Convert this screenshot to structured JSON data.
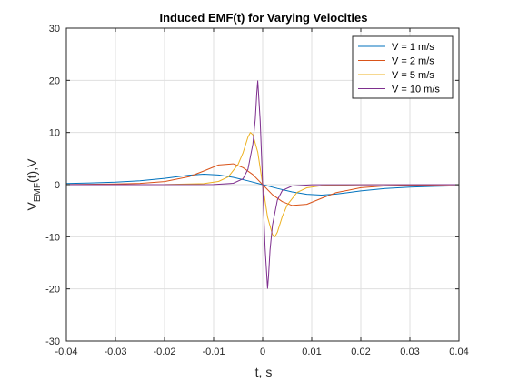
{
  "chart_data": {
    "type": "line",
    "title": "Induced EMF(t) for Varying Velocities",
    "xlabel": "t, s",
    "ylabel": {
      "main": "V",
      "sub": "EMF",
      "tail": "(t),V"
    },
    "xlim": [
      -0.04,
      0.04
    ],
    "ylim": [
      -30,
      30
    ],
    "xticks": [
      -0.04,
      -0.03,
      -0.02,
      -0.01,
      0,
      0.01,
      0.02,
      0.03,
      0.04
    ],
    "xtick_labels": [
      "-0.04",
      "-0.03",
      "-0.02",
      "-0.01",
      "0",
      "0.01",
      "0.02",
      "0.03",
      "0.04"
    ],
    "yticks": [
      -30,
      -20,
      -10,
      0,
      10,
      20,
      30
    ],
    "ytick_labels": [
      "-30",
      "-20",
      "-10",
      "0",
      "10",
      "20",
      "30"
    ],
    "grid": true,
    "legend_position": "top-right",
    "series": [
      {
        "name": "V = 1  m/s",
        "color": "#0072BD",
        "x": [
          -0.04,
          -0.035,
          -0.03,
          -0.025,
          -0.02,
          -0.015,
          -0.012,
          -0.009,
          -0.006,
          -0.003,
          0,
          0.003,
          0.006,
          0.009,
          0.012,
          0.015,
          0.02,
          0.025,
          0.03,
          0.035,
          0.04
        ],
        "y": [
          0.21,
          0.32,
          0.47,
          0.75,
          1.2,
          1.82,
          2.0,
          1.85,
          1.39,
          0.73,
          0,
          -0.73,
          -1.39,
          -1.85,
          -2.0,
          -1.82,
          -1.2,
          -0.75,
          -0.47,
          -0.32,
          -0.21
        ]
      },
      {
        "name": "V = 2  m/s",
        "color": "#D95319",
        "x": [
          -0.04,
          -0.03,
          -0.025,
          -0.02,
          -0.015,
          -0.012,
          -0.009,
          -0.006,
          -0.004,
          -0.002,
          0,
          0.002,
          0.004,
          0.006,
          0.009,
          0.012,
          0.015,
          0.02,
          0.025,
          0.03,
          0.04
        ],
        "y": [
          0.03,
          0.12,
          0.24,
          0.59,
          1.53,
          2.62,
          3.77,
          4.0,
          3.26,
          1.93,
          0,
          -1.93,
          -3.26,
          -4.0,
          -3.77,
          -2.62,
          -1.53,
          -0.59,
          -0.24,
          -0.12,
          -0.03
        ]
      },
      {
        "name": "V = 5  m/s",
        "color": "#EDB120",
        "x": [
          -0.04,
          -0.02,
          -0.012,
          -0.009,
          -0.007,
          -0.005,
          -0.004,
          -0.003,
          -0.0025,
          -0.002,
          -0.001,
          0,
          0.001,
          0.002,
          0.0025,
          0.003,
          0.004,
          0.005,
          0.007,
          0.009,
          0.012,
          0.02,
          0.04
        ],
        "y": [
          0,
          0.02,
          0.2,
          0.61,
          1.49,
          3.91,
          6.12,
          9.11,
          10.0,
          9.58,
          6.24,
          0,
          -6.24,
          -9.58,
          -10.0,
          -9.11,
          -6.12,
          -3.91,
          -1.49,
          -0.61,
          -0.2,
          -0.02,
          0
        ]
      },
      {
        "name": "V = 10 m/s",
        "color": "#7E2F8E",
        "x": [
          -0.04,
          -0.01,
          -0.006,
          -0.004,
          -0.003,
          -0.002,
          -0.0015,
          -0.0012,
          -0.001,
          -0.0005,
          0,
          0.0005,
          0.001,
          0.0012,
          0.0015,
          0.002,
          0.003,
          0.004,
          0.006,
          0.01,
          0.04
        ],
        "y": [
          0,
          0.03,
          0.26,
          1.13,
          2.95,
          7.75,
          12.6,
          17.5,
          19.9,
          12.2,
          0,
          -12.2,
          -19.9,
          -17.5,
          -12.6,
          -7.75,
          -2.95,
          -1.13,
          -0.26,
          -0.03,
          0
        ]
      }
    ]
  }
}
